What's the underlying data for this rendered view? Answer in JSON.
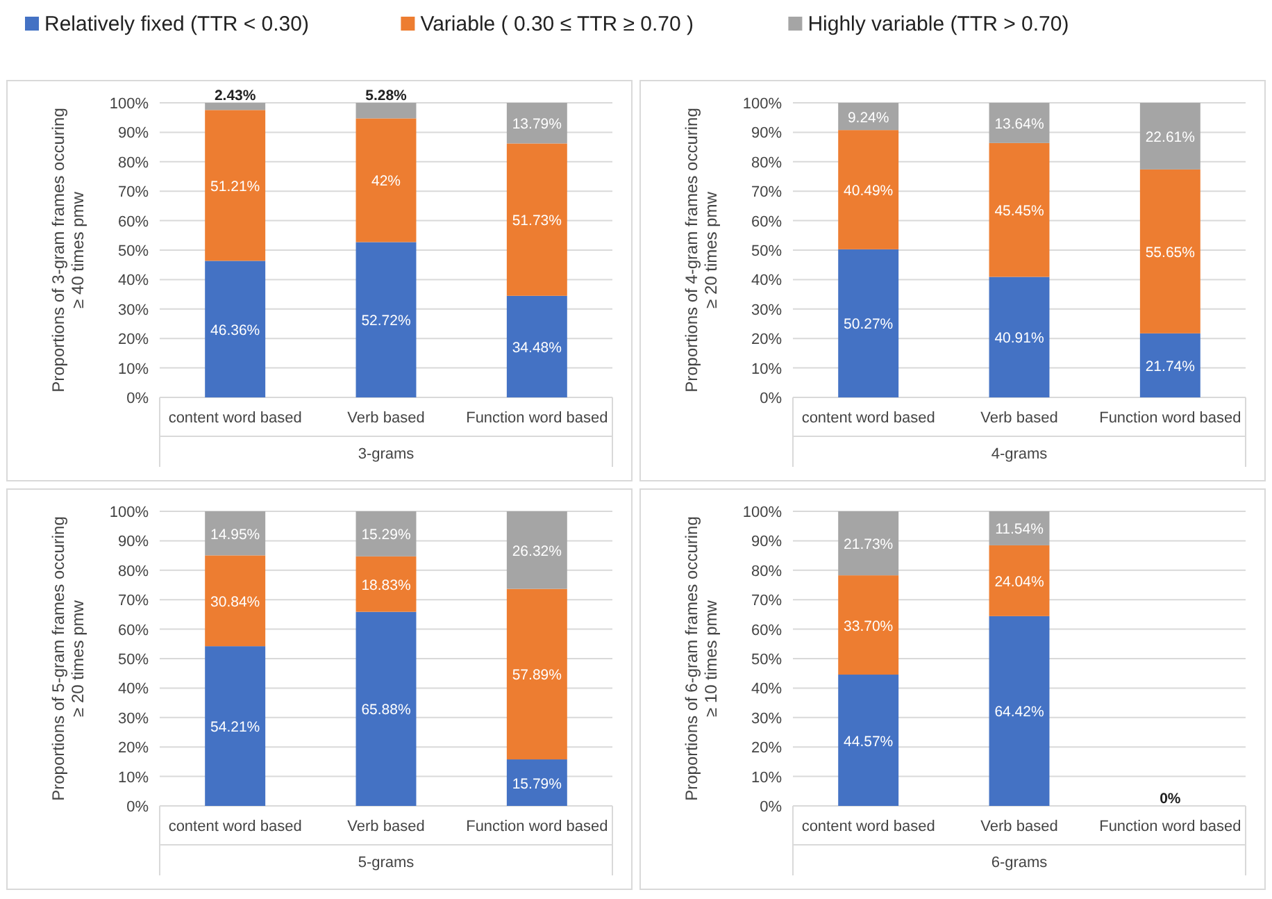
{
  "chart_data": [
    {
      "type": "bar",
      "stacked": true,
      "legend": "top",
      "grid": "y",
      "xlabel": "3-grams",
      "ylabel": "Proportions of 3-gram frames  occuring\n≥ 40 times pmw",
      "categories": [
        "content word based",
        "Verb based",
        "Function word based"
      ],
      "ylim": [
        0,
        100
      ],
      "yticks": [
        {
          "value": 0,
          "label": "0%"
        },
        {
          "value": 10,
          "label": "10%"
        },
        {
          "value": 20,
          "label": "20%"
        },
        {
          "value": 30,
          "label": "30%"
        },
        {
          "value": 40,
          "label": "40%"
        },
        {
          "value": 50,
          "label": "50%"
        },
        {
          "value": 60,
          "label": "60%"
        },
        {
          "value": 70,
          "label": "70%"
        },
        {
          "value": 80,
          "label": "80%"
        },
        {
          "value": 90,
          "label": "90%"
        },
        {
          "value": 100,
          "label": "100%"
        }
      ],
      "series": [
        {
          "name": "Relatively fixed (TTR < 0.30)",
          "color": "#4472c4",
          "values": [
            46.36,
            52.72,
            34.48
          ],
          "value_labels": [
            "46.36%",
            "52.72%",
            "34.48%"
          ]
        },
        {
          "name": "Variable ( 0.30 ≤ TTR ≥ 0.70 )",
          "color": "#ed7d31",
          "values": [
            51.21,
            42,
            51.73
          ],
          "value_labels": [
            "51.21%",
            "42%",
            "51.73%"
          ]
        },
        {
          "name": "Highly variable (TTR > 0.70)",
          "color": "#a5a5a5",
          "values": [
            2.43,
            5.28,
            13.79
          ],
          "value_labels": [
            "2.43%",
            "5.28%",
            "13.79%"
          ]
        }
      ]
    },
    {
      "type": "bar",
      "stacked": true,
      "grid": "y",
      "xlabel": "4-grams",
      "ylabel": "Proportions of 4-gram frames  occuring\n≥ 20 times pmw",
      "categories": [
        "content word based",
        "Verb based",
        "Function word based"
      ],
      "ylim": [
        0,
        100
      ],
      "yticks": [
        {
          "value": 0,
          "label": "0%"
        },
        {
          "value": 10,
          "label": "10%"
        },
        {
          "value": 20,
          "label": "20%"
        },
        {
          "value": 30,
          "label": "30%"
        },
        {
          "value": 40,
          "label": "40%"
        },
        {
          "value": 50,
          "label": "50%"
        },
        {
          "value": 60,
          "label": "60%"
        },
        {
          "value": 70,
          "label": "70%"
        },
        {
          "value": 80,
          "label": "80%"
        },
        {
          "value": 90,
          "label": "90%"
        },
        {
          "value": 100,
          "label": "100%"
        }
      ],
      "series": [
        {
          "color": "#4472c4",
          "values": [
            50.27,
            40.91,
            21.74
          ],
          "value_labels": [
            "50.27%",
            "40.91%",
            "21.74%"
          ]
        },
        {
          "color": "#ed7d31",
          "values": [
            40.49,
            45.45,
            55.65
          ],
          "value_labels": [
            "40.49%",
            "45.45%",
            "55.65%"
          ]
        },
        {
          "color": "#a5a5a5",
          "values": [
            9.24,
            13.64,
            22.61
          ],
          "value_labels": [
            "9.24%",
            "13.64%",
            "22.61%"
          ]
        }
      ]
    },
    {
      "type": "bar",
      "stacked": true,
      "grid": "y",
      "xlabel": "5-grams",
      "ylabel": "Proportions of 5-gram frames  occuring\n≥ 20 times pmw",
      "categories": [
        "content word based",
        "Verb based",
        "Function word based"
      ],
      "ylim": [
        0,
        100
      ],
      "yticks": [
        {
          "value": 0,
          "label": "0%"
        },
        {
          "value": 10,
          "label": "10%"
        },
        {
          "value": 20,
          "label": "20%"
        },
        {
          "value": 30,
          "label": "30%"
        },
        {
          "value": 40,
          "label": "40%"
        },
        {
          "value": 50,
          "label": "50%"
        },
        {
          "value": 60,
          "label": "60%"
        },
        {
          "value": 70,
          "label": "70%"
        },
        {
          "value": 80,
          "label": "80%"
        },
        {
          "value": 90,
          "label": "90%"
        },
        {
          "value": 100,
          "label": "100%"
        }
      ],
      "series": [
        {
          "color": "#4472c4",
          "values": [
            54.21,
            65.88,
            15.79
          ],
          "value_labels": [
            "54.21%",
            "65.88%",
            "15.79%"
          ]
        },
        {
          "color": "#ed7d31",
          "values": [
            30.84,
            18.83,
            57.89
          ],
          "value_labels": [
            "30.84%",
            "18.83%",
            "57.89%"
          ]
        },
        {
          "color": "#a5a5a5",
          "values": [
            14.95,
            15.29,
            26.32
          ],
          "value_labels": [
            "14.95%",
            "15.29%",
            "26.32%"
          ]
        }
      ]
    },
    {
      "type": "bar",
      "stacked": true,
      "grid": "y",
      "xlabel": "6-grams",
      "ylabel": "Proportions of 6-gram frames  occuring\n≥ 10 times pmw",
      "categories": [
        "content word based",
        "Verb based",
        "Function word based"
      ],
      "ylim": [
        0,
        100
      ],
      "yticks": [
        {
          "value": 0,
          "label": "0%"
        },
        {
          "value": 10,
          "label": "10%"
        },
        {
          "value": 20,
          "label": "20%"
        },
        {
          "value": 30,
          "label": "30%"
        },
        {
          "value": 40,
          "label": "40%"
        },
        {
          "value": 50,
          "label": "50%"
        },
        {
          "value": 60,
          "label": "60%"
        },
        {
          "value": 70,
          "label": "70%"
        },
        {
          "value": 80,
          "label": "80%"
        },
        {
          "value": 90,
          "label": "90%"
        },
        {
          "value": 100,
          "label": "100%"
        }
      ],
      "series": [
        {
          "color": "#4472c4",
          "values": [
            44.57,
            64.42,
            0
          ],
          "value_labels": [
            "44.57%",
            "64.42%",
            null
          ]
        },
        {
          "color": "#ed7d31",
          "values": [
            33.7,
            24.04,
            0
          ],
          "value_labels": [
            "33.70%",
            "24.04%",
            null
          ]
        },
        {
          "color": "#a5a5a5",
          "values": [
            21.73,
            11.54,
            0
          ],
          "value_labels": [
            "21.73%",
            "11.54%",
            "0%"
          ]
        }
      ]
    }
  ]
}
